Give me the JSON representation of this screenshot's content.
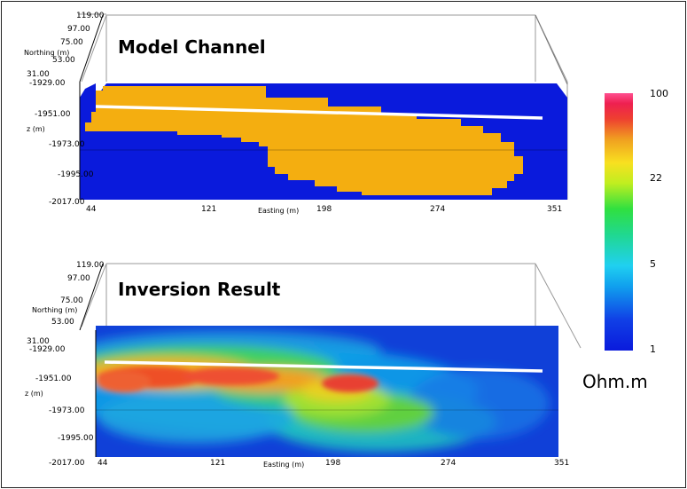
{
  "chart_data": [
    {
      "type": "heatmap",
      "title": "Model Channel",
      "xlabel": "Easting (m)",
      "ylabel": "z (m)",
      "depth_label": "Northing (m)",
      "x_ticks": [
        "44",
        "121",
        "198",
        "274",
        "351"
      ],
      "z_ticks": [
        "-1929.00",
        "-1951.00",
        "-1973.00",
        "-1995.00",
        "-2017.00"
      ],
      "northing_ticks": [
        "119.00",
        "97.00",
        "75.00",
        "53.00",
        "31.00"
      ],
      "xlim": [
        44,
        351
      ],
      "zlim": [
        -2017,
        -1929
      ],
      "background_resistivity": 1,
      "channel_resistivity": 22,
      "colors": {
        "background": "#0a1adc",
        "channel": "#f4ae10"
      }
    },
    {
      "type": "heatmap",
      "title": "Inversion Result",
      "xlabel": "Easting (m)",
      "ylabel": "z (m)",
      "depth_label": "Northing (m)",
      "x_ticks": [
        "44",
        "121",
        "198",
        "274",
        "351"
      ],
      "z_ticks": [
        "-1929.00",
        "-1951.00",
        "-1973.00",
        "-1995.00",
        "-2017.00"
      ],
      "northing_ticks": [
        "119.00",
        "97.00",
        "75.00",
        "53.00",
        "31.00"
      ],
      "xlim": [
        44,
        351
      ],
      "zlim": [
        -2017,
        -1929
      ]
    }
  ],
  "colorbar": {
    "ticks": [
      "100",
      "22",
      "5",
      "1"
    ],
    "scale": "log",
    "range": [
      1,
      100
    ],
    "unit": "Ohm.m",
    "stops": [
      "#0a1adc",
      "#1a5ae8",
      "#2ad0f0",
      "#20d890",
      "#30e040",
      "#c0ee20",
      "#f8e020",
      "#f0a020",
      "#ee5030",
      "#ee2050",
      "#ff4f90"
    ]
  }
}
